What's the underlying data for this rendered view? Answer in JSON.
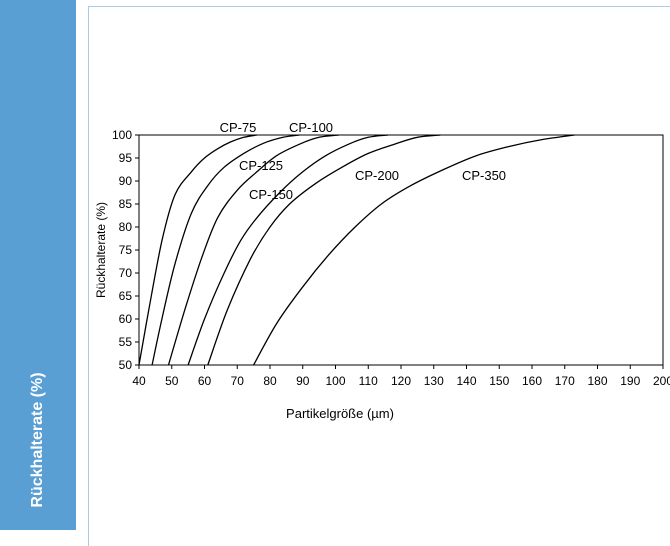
{
  "side_label": "Rückhalterate (%)",
  "colors": {
    "side_band": "#5a9fd4",
    "frame_border": "#a9cbe6",
    "line": "#000000"
  },
  "chart_data": {
    "type": "line",
    "title": "",
    "xlabel": "Partikelgröße (µm)",
    "ylabel": "Rückhalterate (%)",
    "xlim": [
      40,
      200
    ],
    "ylim": [
      50,
      100
    ],
    "xticks": [
      40,
      50,
      60,
      70,
      80,
      90,
      100,
      110,
      120,
      130,
      140,
      150,
      160,
      170,
      180,
      190,
      200
    ],
    "yticks": [
      50,
      55,
      60,
      65,
      70,
      75,
      80,
      85,
      90,
      95,
      100
    ],
    "grid": false,
    "series": [
      {
        "name": "CP-75",
        "x": [
          40,
          43,
          47,
          51,
          56,
          60,
          64,
          68,
          72,
          76
        ],
        "y": [
          50,
          62,
          77,
          87,
          92,
          95,
          97,
          98.5,
          99.5,
          100
        ]
      },
      {
        "name": "CP-100",
        "x": [
          44,
          47,
          51,
          56,
          61,
          66,
          72,
          78,
          84,
          89
        ],
        "y": [
          50,
          60,
          72,
          83,
          89,
          93,
          96,
          98.2,
          99.5,
          100
        ]
      },
      {
        "name": "CP-125",
        "x": [
          49,
          54,
          59,
          64,
          70,
          76,
          82,
          89,
          95,
          101
        ],
        "y": [
          50,
          62,
          73,
          82,
          88,
          92,
          95.5,
          98,
          99.5,
          100
        ]
      },
      {
        "name": "CP-150",
        "x": [
          55,
          60,
          66,
          71,
          76,
          83,
          90,
          97,
          104,
          110,
          116
        ],
        "y": [
          50,
          60,
          70,
          77,
          82,
          87.5,
          92,
          95.5,
          98,
          99.5,
          100
        ]
      },
      {
        "name": "CP-200",
        "x": [
          61,
          67,
          74,
          80,
          86,
          94,
          102,
          110,
          118,
          125,
          132
        ],
        "y": [
          50,
          62,
          73,
          80,
          85,
          89.5,
          93,
          96,
          98,
          99.5,
          100
        ]
      },
      {
        "name": "CP-350",
        "x": [
          75,
          82,
          90,
          98,
          106,
          114,
          123,
          133,
          143,
          153,
          163,
          173
        ],
        "y": [
          50,
          59,
          67,
          74,
          80,
          85,
          89,
          92.5,
          95.5,
          97.5,
          99,
          100
        ]
      }
    ],
    "annotations": [
      "CP-75",
      "CP-100",
      "CP-125",
      "CP-150",
      "CP-200",
      "CP-350"
    ]
  }
}
